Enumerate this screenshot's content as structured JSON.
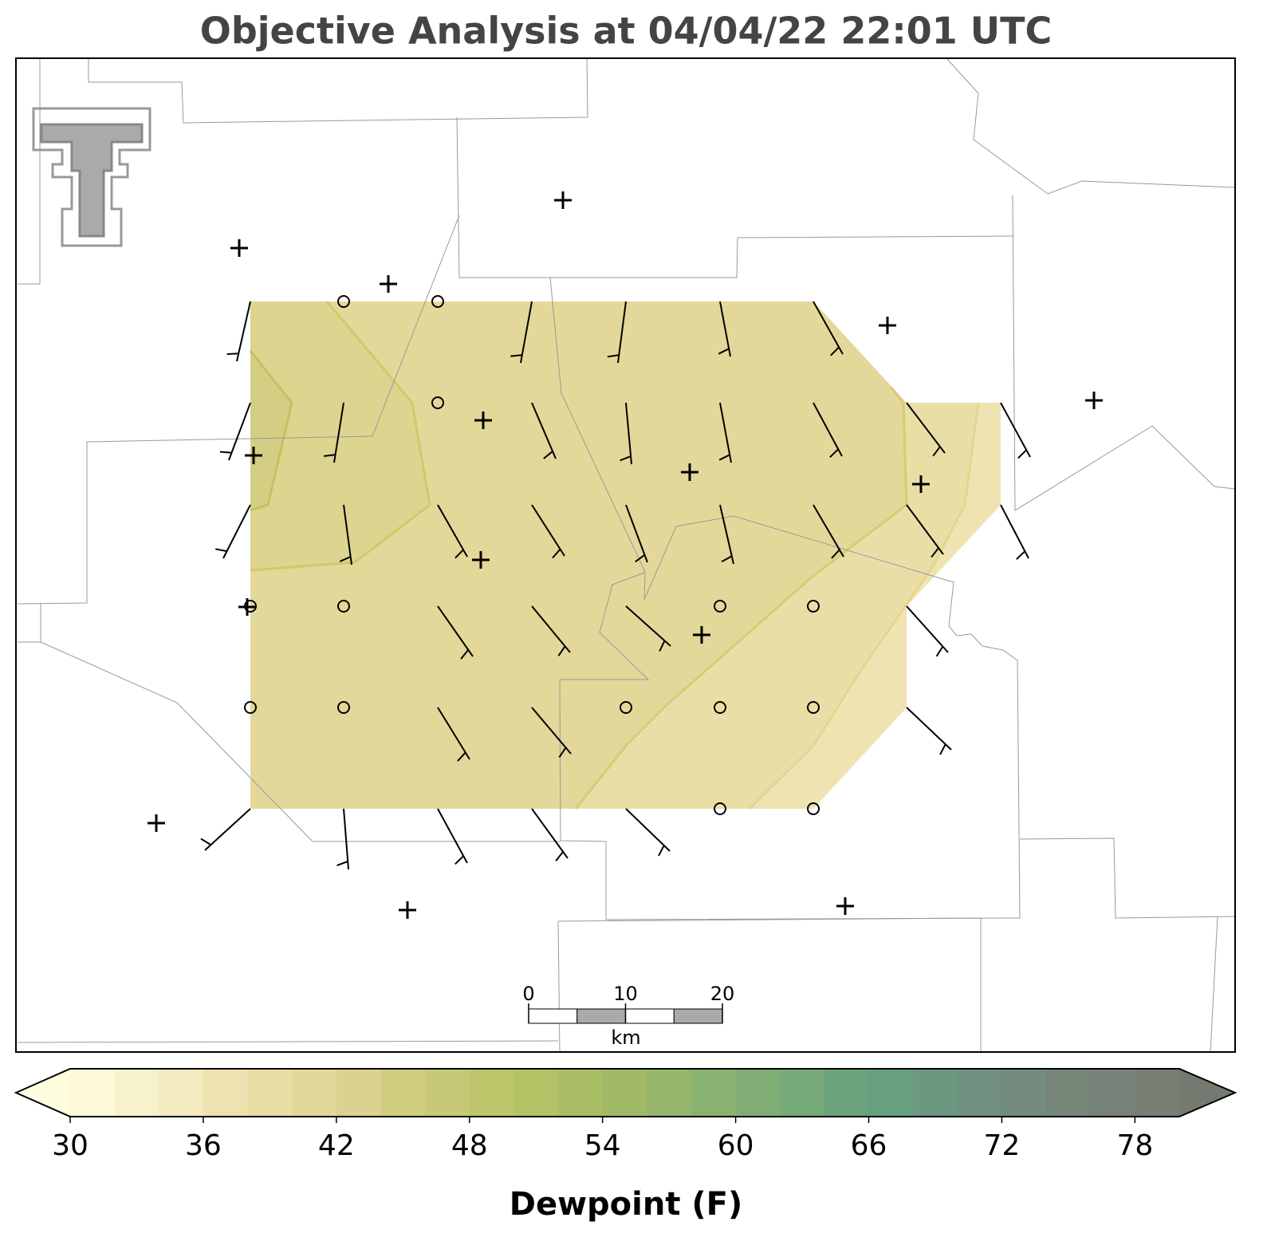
{
  "title": "Objective Analysis at 04/04/22 22:01 UTC",
  "colorbar": {
    "label": "Dewpoint (F)",
    "lim": [
      30,
      80
    ],
    "ticks": [
      30,
      36,
      42,
      48,
      54,
      60,
      66,
      72,
      78
    ],
    "colors": [
      "#fdf9d9",
      "#f8f2cc",
      "#f3eabf",
      "#eee2b0",
      "#e9dca4",
      "#e3d899",
      "#dad28e",
      "#d0cd80",
      "#c7c875",
      "#bdc66a",
      "#b3c264",
      "#a9be64",
      "#a0ba67",
      "#95b56b",
      "#89b16f",
      "#7fad73",
      "#76aa78",
      "#6ba37c",
      "#67a07f",
      "#6c9780",
      "#71907f",
      "#738c7e",
      "#758679",
      "#768277",
      "#777f75"
    ],
    "extend_colors": [
      "#fffde0",
      "#737a70"
    ]
  },
  "scale_bar": {
    "lim": [
      0,
      20
    ],
    "ticks": [
      0,
      10,
      20
    ],
    "unit": "km"
  }
}
